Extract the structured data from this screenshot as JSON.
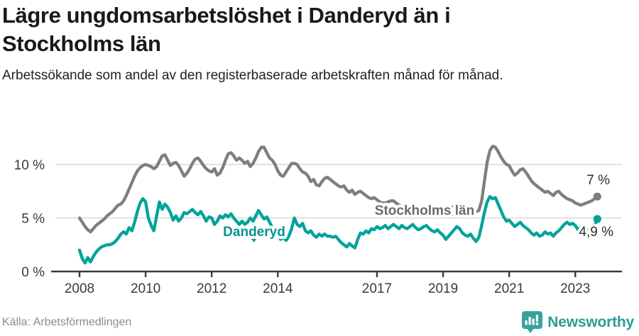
{
  "header": {
    "title": "Lägre ungdomsarbetslöshet i Danderyd än i Stockholms län",
    "subtitle": "Arbetssökande som andel av den registerbaserade arbetskraften månad för månad."
  },
  "chart_data": {
    "type": "line",
    "title": "Lägre ungdomsarbetslöshet i Danderyd än i Stockholms län",
    "xlabel": "",
    "ylabel": "Arbetssökande som andel av den registerbaserade arbetskraften (%)",
    "x_start_year": 2008,
    "x_points_per_year": 12,
    "x_tick_years": [
      2008,
      2010,
      2012,
      2014,
      2017,
      2019,
      2021,
      2023
    ],
    "y_ticks": [
      {
        "value": 0,
        "label": "0 %"
      },
      {
        "value": 5,
        "label": "5 %"
      },
      {
        "value": 10,
        "label": "10 %"
      }
    ],
    "ylim": [
      0,
      12.3
    ],
    "grid": "horizontal",
    "legend_position": "inline-labels",
    "colors": {
      "grid": "#e2e2e2",
      "axis": "#3a3a3a",
      "accent_teal": "#00a39a",
      "gray": "#7e7e7e"
    },
    "series": [
      {
        "name": "Stockholms län",
        "label": "Stockholms län",
        "end_label": "7 %",
        "end_value": 7.0,
        "color": "#7e7e7e",
        "label_color": "#6b6b6b",
        "values": [
          5.0,
          4.6,
          4.2,
          3.9,
          3.7,
          4.0,
          4.3,
          4.5,
          4.7,
          4.9,
          5.2,
          5.4,
          5.6,
          5.9,
          6.2,
          6.3,
          6.6,
          7.1,
          7.7,
          8.3,
          8.9,
          9.4,
          9.7,
          9.9,
          10.0,
          9.9,
          9.8,
          9.6,
          9.8,
          10.3,
          10.8,
          10.9,
          10.4,
          9.9,
          10.1,
          10.2,
          9.9,
          9.4,
          8.9,
          9.2,
          9.6,
          10.1,
          10.5,
          10.6,
          10.3,
          9.9,
          9.6,
          9.4,
          9.3,
          9.6,
          9.0,
          9.2,
          9.7,
          10.4,
          11.0,
          11.1,
          10.8,
          10.4,
          10.6,
          10.4,
          10.1,
          10.3,
          9.8,
          10.1,
          10.6,
          11.2,
          11.6,
          11.6,
          11.1,
          10.6,
          10.4,
          10.0,
          9.4,
          9.0,
          8.9,
          9.3,
          9.7,
          10.1,
          10.1,
          10.0,
          9.6,
          9.3,
          9.2,
          8.9,
          8.4,
          8.6,
          8.1,
          8.0,
          8.4,
          8.7,
          8.8,
          8.6,
          8.4,
          8.2,
          8.0,
          7.9,
          8.0,
          7.6,
          7.4,
          7.6,
          7.2,
          7.4,
          7.5,
          7.3,
          7.1,
          6.9,
          6.8,
          6.9,
          6.7,
          6.5,
          6.4,
          6.4,
          6.5,
          6.6,
          6.6,
          6.4,
          6.2,
          6.1,
          6.0,
          5.9,
          5.9,
          5.8,
          5.7,
          5.7,
          5.8,
          6.0,
          6.1,
          5.9,
          5.7,
          5.5,
          5.4,
          5.4,
          5.4,
          5.3,
          5.2,
          5.3,
          5.4,
          5.6,
          5.7,
          5.6,
          5.5,
          5.4,
          5.4,
          5.5,
          5.6,
          5.7,
          6.6,
          8.4,
          10.2,
          11.3,
          11.7,
          11.6,
          11.2,
          10.7,
          10.3,
          10.0,
          9.9,
          9.4,
          9.0,
          9.2,
          9.5,
          9.6,
          9.3,
          8.9,
          8.5,
          8.2,
          8.0,
          7.8,
          7.6,
          7.4,
          7.5,
          7.3,
          7.1,
          7.4,
          7.5,
          7.2,
          7.0,
          6.8,
          6.7,
          6.6,
          6.4,
          6.3,
          6.2,
          6.3,
          6.4,
          6.5,
          6.6,
          6.8,
          7.0
        ]
      },
      {
        "name": "Danderyd",
        "label": "Danderyd",
        "end_label": "4,9 %",
        "end_value": 4.9,
        "color": "#00a39a",
        "label_color": "#00968e",
        "values": [
          2.0,
          1.2,
          0.8,
          1.3,
          0.9,
          1.4,
          1.8,
          2.1,
          2.3,
          2.4,
          2.5,
          2.5,
          2.6,
          2.8,
          3.1,
          3.5,
          3.7,
          3.5,
          4.1,
          3.8,
          4.6,
          5.6,
          6.4,
          6.8,
          6.5,
          5.0,
          4.3,
          3.8,
          5.2,
          6.5,
          5.8,
          6.3,
          6.0,
          5.5,
          4.8,
          5.2,
          4.7,
          5.0,
          5.5,
          5.4,
          5.6,
          5.8,
          5.5,
          5.3,
          5.6,
          5.2,
          4.7,
          5.1,
          5.0,
          4.4,
          4.7,
          5.2,
          5.0,
          5.3,
          5.1,
          5.4,
          5.0,
          4.7,
          4.4,
          4.7,
          4.4,
          4.6,
          5.0,
          4.7,
          5.2,
          5.7,
          5.3,
          4.9,
          5.1,
          4.6,
          4.1,
          3.8,
          3.4,
          3.0,
          3.2,
          2.9,
          3.3,
          4.0,
          5.0,
          4.4,
          4.2,
          4.5,
          3.8,
          3.6,
          3.8,
          3.4,
          3.2,
          3.5,
          3.3,
          3.5,
          3.3,
          3.3,
          3.2,
          3.3,
          3.0,
          2.7,
          2.5,
          2.3,
          2.6,
          2.4,
          2.2,
          3.0,
          3.6,
          3.5,
          3.8,
          3.6,
          4.0,
          3.9,
          4.2,
          4.0,
          4.1,
          4.3,
          4.0,
          4.2,
          4.4,
          4.2,
          4.0,
          4.3,
          4.1,
          4.0,
          4.2,
          4.4,
          4.1,
          3.9,
          4.0,
          4.2,
          4.3,
          4.0,
          3.8,
          3.7,
          3.9,
          3.6,
          3.4,
          3.0,
          3.3,
          3.6,
          3.9,
          4.2,
          4.0,
          3.6,
          3.4,
          3.3,
          3.5,
          3.1,
          2.8,
          3.2,
          4.3,
          5.5,
          6.5,
          7.0,
          6.8,
          6.9,
          6.3,
          5.7,
          5.1,
          4.7,
          4.8,
          4.5,
          4.2,
          4.4,
          4.6,
          4.3,
          4.1,
          3.9,
          3.6,
          3.4,
          3.6,
          3.3,
          3.4,
          3.7,
          3.5,
          3.6,
          3.3,
          3.6,
          3.8,
          4.1,
          4.4,
          4.6,
          4.4,
          4.5,
          4.3,
          3.9,
          4.1,
          4.0,
          3.8,
          3.9,
          3.8,
          4.3,
          4.9
        ]
      }
    ]
  },
  "footer": {
    "source": "Källa: Arbetsförmedlingen",
    "brand": "Newsworthy"
  }
}
